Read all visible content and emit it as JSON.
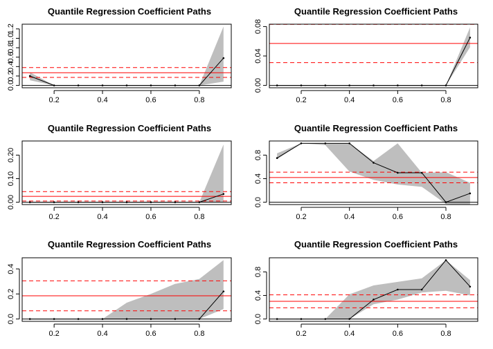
{
  "chart_data": [
    {
      "type": "line",
      "title": "Quantile Regression Coefficient Paths",
      "xlabel": "",
      "ylabel": "",
      "xlim": [
        0.1,
        0.9
      ],
      "ylim": [
        0,
        1.25
      ],
      "xticks": [
        "0.2",
        "0.4",
        "0.6",
        "0.8"
      ],
      "yticks": [
        "0.0",
        "0.2",
        "0.4",
        "0.6",
        "0.8",
        "1.0",
        "1.2"
      ],
      "x": [
        0.1,
        0.2,
        0.3,
        0.4,
        0.5,
        0.6,
        0.7,
        0.8,
        0.9
      ],
      "estimate": [
        0.2,
        0,
        0,
        0,
        0,
        0,
        0,
        0,
        0.58
      ],
      "ci_lower": [
        0.11,
        0,
        0,
        0,
        0,
        0,
        0,
        0,
        0.08
      ],
      "ci_upper": [
        0.28,
        0,
        0,
        0,
        0,
        0,
        0,
        0,
        1.25
      ],
      "ols_estimate": 0.27,
      "ols_ci": [
        0.17,
        0.38
      ],
      "grid": false
    },
    {
      "type": "line",
      "title": "Quantile Regression Coefficient Paths",
      "xlabel": "",
      "ylabel": "",
      "xlim": [
        0.1,
        0.9
      ],
      "ylim": [
        0,
        0.08
      ],
      "xticks": [
        "0.2",
        "0.4",
        "0.6",
        "0.8"
      ],
      "yticks": [
        "0.00",
        "0.04",
        "0.08"
      ],
      "x": [
        0.1,
        0.2,
        0.3,
        0.4,
        0.5,
        0.6,
        0.7,
        0.8,
        0.9
      ],
      "estimate": [
        0,
        0,
        0,
        0,
        0,
        0,
        0,
        0,
        0.065
      ],
      "ci_lower": [
        0,
        0,
        0,
        0,
        0,
        0,
        0,
        0,
        0.052
      ],
      "ci_upper": [
        0,
        0,
        0,
        0,
        0,
        0,
        0,
        0,
        0.079
      ],
      "ols_estimate": 0.057,
      "ols_ci": [
        0.031,
        0.083
      ],
      "grid": false
    },
    {
      "type": "line",
      "title": "Quantile Regression Coefficient Paths",
      "xlabel": "",
      "ylabel": "",
      "xlim": [
        0.1,
        0.9
      ],
      "ylim": [
        0,
        0.25
      ],
      "xticks": [
        "0.2",
        "0.4",
        "0.6",
        "0.8"
      ],
      "yticks": [
        "0.00",
        "0.10",
        "0.20"
      ],
      "x": [
        0.1,
        0.2,
        0.3,
        0.4,
        0.5,
        0.6,
        0.7,
        0.8,
        0.9
      ],
      "estimate": [
        0,
        0,
        0,
        0,
        0,
        0,
        0,
        0,
        0.035
      ],
      "ci_lower": [
        0,
        0,
        0,
        0,
        0,
        0,
        0,
        0,
        0
      ],
      "ci_upper": [
        0,
        0,
        0,
        0,
        0,
        0,
        0,
        0,
        0.245
      ],
      "ols_estimate": 0.025,
      "ols_ci": [
        0.005,
        0.045
      ],
      "grid": false
    },
    {
      "type": "line",
      "title": "Quantile Regression Coefficient Paths",
      "xlabel": "",
      "ylabel": "",
      "xlim": [
        0.1,
        0.9
      ],
      "ylim": [
        0,
        1.0
      ],
      "xticks": [
        "0.2",
        "0.4",
        "0.6",
        "0.8"
      ],
      "yticks": [
        "0.0",
        "0.4",
        "0.8"
      ],
      "x": [
        0.1,
        0.2,
        0.3,
        0.4,
        0.5,
        0.6,
        0.7,
        0.8,
        0.9
      ],
      "estimate": [
        0.75,
        1.0,
        1.0,
        1.0,
        0.67,
        0.5,
        0.5,
        0.0,
        0.15
      ],
      "ci_lower": [
        0.73,
        1.0,
        0.97,
        0.52,
        0.38,
        0.3,
        0.26,
        -0.03,
        -0.05
      ],
      "ci_upper": [
        0.83,
        1.0,
        1.0,
        1.0,
        0.7,
        1.0,
        0.5,
        0.51,
        0.33
      ],
      "ols_estimate": 0.42,
      "ols_ci": [
        0.33,
        0.51
      ],
      "grid": false
    },
    {
      "type": "line",
      "title": "Quantile Regression Coefficient Paths",
      "xlabel": "",
      "ylabel": "",
      "xlim": [
        0.1,
        0.9
      ],
      "ylim": [
        0,
        0.47
      ],
      "xticks": [
        "0.2",
        "0.4",
        "0.6",
        "0.8"
      ],
      "yticks": [
        "0.0",
        "0.2",
        "0.4"
      ],
      "x": [
        0.1,
        0.2,
        0.3,
        0.4,
        0.5,
        0.6,
        0.7,
        0.8,
        0.9
      ],
      "estimate": [
        0,
        0,
        0,
        0,
        0,
        0,
        0,
        0,
        0.22
      ],
      "ci_lower": [
        0,
        0,
        0,
        0,
        0,
        0,
        0,
        0,
        0.08
      ],
      "ci_upper": [
        0,
        0,
        0,
        0,
        0.13,
        0.2,
        0.28,
        0.32,
        0.47
      ],
      "ols_estimate": 0.185,
      "ols_ci": [
        0.065,
        0.305
      ],
      "grid": false
    },
    {
      "type": "line",
      "title": "Quantile Regression Coefficient Paths",
      "xlabel": "",
      "ylabel": "",
      "xlim": [
        0.1,
        0.9
      ],
      "ylim": [
        0,
        1.0
      ],
      "xticks": [
        "0.2",
        "0.4",
        "0.6",
        "0.8"
      ],
      "yticks": [
        "0.0",
        "0.4",
        "0.8"
      ],
      "x": [
        0.1,
        0.2,
        0.3,
        0.4,
        0.5,
        0.6,
        0.7,
        0.8,
        0.9
      ],
      "estimate": [
        0,
        0,
        0,
        0,
        0.33,
        0.5,
        0.5,
        1.0,
        0.55
      ],
      "ci_lower": [
        0,
        0,
        0,
        0,
        0.25,
        0.33,
        0.45,
        0.48,
        0.4
      ],
      "ci_upper": [
        0,
        0,
        0,
        0.42,
        0.57,
        0.63,
        0.69,
        1.0,
        0.66
      ],
      "ols_estimate": 0.3,
      "ols_ci": [
        0.19,
        0.41
      ],
      "grid": false
    }
  ],
  "colors": {
    "band": "#bebebe",
    "ols_line": "#ff0000",
    "ols_ci_line": "#ff0000",
    "estimate_line": "#000000",
    "zero_line": "#000000",
    "axis": "#000000"
  }
}
